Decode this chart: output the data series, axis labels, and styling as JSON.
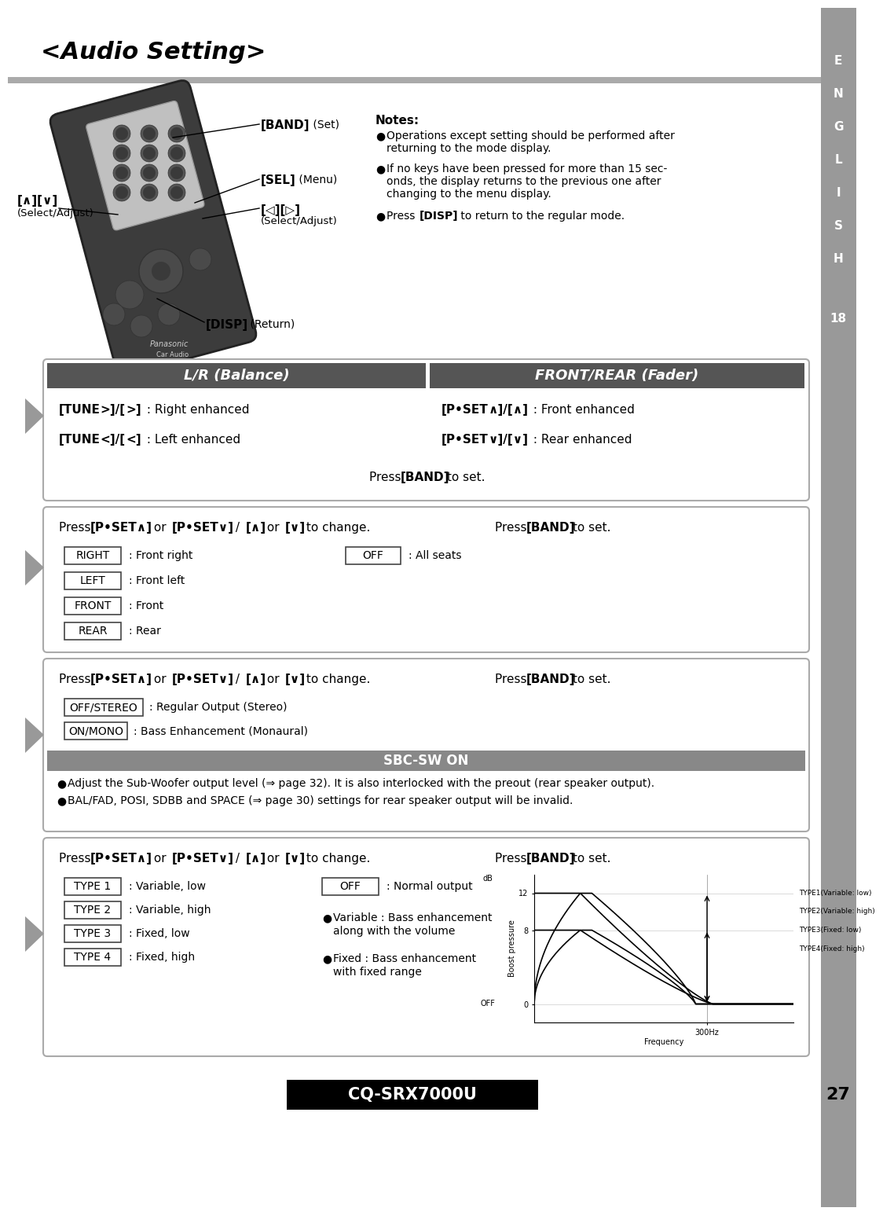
{
  "page_bg": "#ffffff",
  "title": "<Audio Setting>",
  "sidebar_color": "#999999",
  "sidebar_letters": [
    "E",
    "N",
    "G",
    "L",
    "I",
    "S",
    "H"
  ],
  "sidebar_number": "18",
  "page_number": "27",
  "model_name": "CQ-SRX7000U",
  "section1_header_left": "L/R (Balance)",
  "section1_header_right": "FRONT/REAR (Fader)",
  "section1_header_bg": "#555555",
  "notes_title": "Notes:",
  "balance_line1": "[TUNE>]/[>] : Right enhanced",
  "balance_line2": "[TUNE<]/[<] : Left enhanced",
  "fader_line1": "[P•SET∧]/[∧] : Front enhanced",
  "fader_line2": "[P•SET∨]/[∨] : Rear enhanced",
  "box2_items_left": [
    "RIGHT",
    "LEFT",
    "FRONT",
    "REAR"
  ],
  "box2_items_left_desc": [
    ": Front right",
    ": Front left",
    ": Front",
    ": Rear"
  ],
  "box3_items": [
    "OFF/STEREO",
    "ON/MONO"
  ],
  "box3_items_desc": [
    ": Regular Output (Stereo)",
    ": Bass Enhancement (Monaural)"
  ],
  "box3_header": "SBC-SW ON",
  "box3_note1": "Adjust the Sub-Woofer output level (⇒ page 32). It is also interlocked with the preout (rear speaker output).",
  "box3_note2": "BAL/FAD, POSI, SDBB and SPACE (⇒ page 30) settings for rear speaker output will be invalid.",
  "box4_items_left": [
    "TYPE 1",
    "TYPE 2",
    "TYPE 3",
    "TYPE 4"
  ],
  "box4_items_left_desc": [
    ": Variable, low",
    ": Variable, high",
    ": Fixed, low",
    ": Fixed, high"
  ],
  "box4_bullet1_line1": "Variable : Bass enhancement",
  "box4_bullet1_line2": "along with the volume",
  "box4_bullet2_line1": "Fixed : Bass enhancement",
  "box4_bullet2_line2": "with fixed range",
  "graph_curves": [
    "TYPE1(Variable: low)",
    "TYPE2(Variable: high)",
    "TYPE3(Fixed: low)",
    "TYPE4(Fixed: high)"
  ],
  "arrow_fill": "#888888",
  "box_border_color": "#999999",
  "header_bar_color": "#666666"
}
